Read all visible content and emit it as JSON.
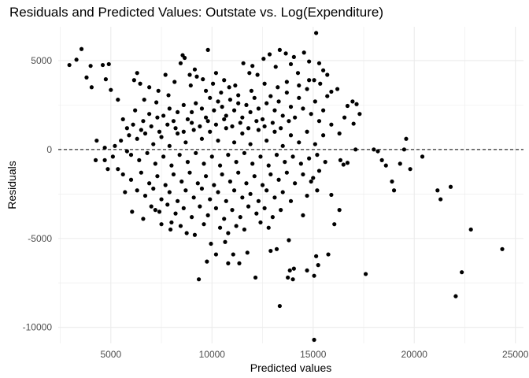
{
  "chart_data": {
    "type": "scatter",
    "title": "Residuals and Predicted Values: Outstate vs. Log(Expenditure)",
    "xlabel": "Predicted values",
    "ylabel": "Residuals",
    "xlim": [
      2400,
      25400
    ],
    "ylim": [
      -10900,
      6900
    ],
    "x_ticks": [
      5000,
      10000,
      15000,
      20000,
      25000
    ],
    "x_tick_labels": [
      "5000",
      "10000",
      "15000",
      "20000",
      "25000"
    ],
    "y_ticks": [
      -10000,
      -5000,
      0,
      5000
    ],
    "y_tick_labels": [
      "-10000",
      "-5000",
      "0",
      "5000"
    ],
    "reference_line": {
      "y": 0,
      "style": "dashed"
    },
    "grid": true,
    "legend": "none",
    "colors": {
      "points": "#000000",
      "grid": "#ebebeb",
      "reference_line": "#000000"
    },
    "points": [
      [
        2950,
        4750
      ],
      [
        3300,
        5050
      ],
      [
        3550,
        5650
      ],
      [
        3800,
        4050
      ],
      [
        4000,
        4700
      ],
      [
        4050,
        3500
      ],
      [
        4600,
        4750
      ],
      [
        4750,
        3950
      ],
      [
        4900,
        4800
      ],
      [
        5000,
        3350
      ],
      [
        5350,
        2800
      ],
      [
        5600,
        1700
      ],
      [
        5800,
        1200
      ],
      [
        6150,
        3900
      ],
      [
        6300,
        4300
      ],
      [
        6450,
        3700
      ],
      [
        6650,
        2800
      ],
      [
        6900,
        3500
      ],
      [
        7250,
        2650
      ],
      [
        7850,
        3050
      ],
      [
        8450,
        4850
      ],
      [
        8550,
        5300
      ],
      [
        8650,
        5150
      ],
      [
        9150,
        4500
      ],
      [
        9550,
        3950
      ],
      [
        9800,
        5600
      ],
      [
        10600,
        3900
      ],
      [
        10850,
        3500
      ],
      [
        11300,
        3050
      ],
      [
        11550,
        4850
      ],
      [
        11850,
        4300
      ],
      [
        12250,
        4200
      ],
      [
        12550,
        5100
      ],
      [
        12850,
        5350
      ],
      [
        13150,
        4650
      ],
      [
        13350,
        5600
      ],
      [
        13650,
        5400
      ],
      [
        13900,
        4800
      ],
      [
        14050,
        5200
      ],
      [
        14250,
        4300
      ],
      [
        14550,
        5450
      ],
      [
        14800,
        4950
      ],
      [
        15050,
        3900
      ],
      [
        15150,
        6550
      ],
      [
        15300,
        4850
      ],
      [
        15500,
        4450
      ],
      [
        15900,
        3250
      ],
      [
        16200,
        3400
      ],
      [
        16700,
        2450
      ],
      [
        16950,
        2700
      ],
      [
        17150,
        2550
      ],
      [
        17300,
        2000
      ],
      [
        17000,
        1450
      ],
      [
        16550,
        1800
      ],
      [
        16300,
        900
      ],
      [
        17100,
        0
      ],
      [
        16350,
        -600
      ],
      [
        16500,
        -850
      ],
      [
        16700,
        -750
      ],
      [
        15900,
        -2550
      ],
      [
        16300,
        -3400
      ],
      [
        16050,
        -4200
      ],
      [
        15750,
        -5900
      ],
      [
        15150,
        -6000
      ],
      [
        15250,
        -6500
      ],
      [
        15050,
        -7100
      ],
      [
        15050,
        -10700
      ],
      [
        14700,
        -6800
      ],
      [
        14050,
        -6700
      ],
      [
        13850,
        -6800
      ],
      [
        13750,
        -7200
      ],
      [
        14000,
        -7300
      ],
      [
        13350,
        -8800
      ],
      [
        13800,
        -5100
      ],
      [
        13200,
        -5600
      ],
      [
        12900,
        -5700
      ],
      [
        12150,
        -7200
      ],
      [
        11750,
        -5800
      ],
      [
        11350,
        -6400
      ],
      [
        11050,
        -5900
      ],
      [
        10800,
        -6400
      ],
      [
        10650,
        -5200
      ],
      [
        10200,
        -5900
      ],
      [
        9950,
        -5300
      ],
      [
        9750,
        -6300
      ],
      [
        9350,
        -7300
      ],
      [
        9150,
        -4800
      ],
      [
        8750,
        -4700
      ],
      [
        8450,
        -4300
      ],
      [
        7950,
        -4500
      ],
      [
        7500,
        -4200
      ],
      [
        7200,
        -3400
      ],
      [
        6600,
        -3900
      ],
      [
        6050,
        -3500
      ],
      [
        5700,
        -2400
      ],
      [
        5350,
        -1100
      ],
      [
        4850,
        -1100
      ],
      [
        4700,
        -600
      ],
      [
        4300,
        500
      ],
      [
        4250,
        -600
      ],
      [
        18000,
        0
      ],
      [
        18200,
        -100
      ],
      [
        18400,
        -600
      ],
      [
        18600,
        -900
      ],
      [
        18900,
        -1800
      ],
      [
        19000,
        -2300
      ],
      [
        19300,
        -800
      ],
      [
        19500,
        0
      ],
      [
        19600,
        600
      ],
      [
        19800,
        -1100
      ],
      [
        20400,
        -400
      ],
      [
        21150,
        -2300
      ],
      [
        21300,
        -2800
      ],
      [
        21800,
        -2100
      ],
      [
        22050,
        -8250
      ],
      [
        22350,
        -6900
      ],
      [
        22800,
        -4500
      ],
      [
        24350,
        -5600
      ],
      [
        17600,
        -7000
      ],
      [
        6200,
        2200
      ],
      [
        6600,
        1600
      ],
      [
        6900,
        2000
      ],
      [
        7300,
        1800
      ],
      [
        7600,
        1900
      ],
      [
        7900,
        2300
      ],
      [
        8100,
        1600
      ],
      [
        8300,
        2100
      ],
      [
        8600,
        2500
      ],
      [
        8800,
        1700
      ],
      [
        9000,
        2100
      ],
      [
        9200,
        2600
      ],
      [
        9500,
        2300
      ],
      [
        9700,
        1800
      ],
      [
        9900,
        2900
      ],
      [
        10100,
        2200
      ],
      [
        10300,
        2700
      ],
      [
        10500,
        2400
      ],
      [
        10700,
        1900
      ],
      [
        10900,
        2800
      ],
      [
        11100,
        2200
      ],
      [
        11300,
        2600
      ],
      [
        11500,
        1800
      ],
      [
        11700,
        2500
      ],
      [
        11900,
        2100
      ],
      [
        12100,
        2900
      ],
      [
        12300,
        2300
      ],
      [
        12500,
        1700
      ],
      [
        12700,
        2600
      ],
      [
        12900,
        3000
      ],
      [
        13100,
        2200
      ],
      [
        13300,
        2700
      ],
      [
        13500,
        1900
      ],
      [
        13700,
        3200
      ],
      [
        13900,
        2400
      ],
      [
        14100,
        1800
      ],
      [
        14300,
        2900
      ],
      [
        14500,
        2300
      ],
      [
        14700,
        3400
      ],
      [
        14900,
        2000
      ],
      [
        15100,
        2700
      ],
      [
        15300,
        1600
      ],
      [
        15500,
        2200
      ],
      [
        15700,
        3000
      ],
      [
        15900,
        1400
      ],
      [
        5900,
        800
      ],
      [
        6300,
        600
      ],
      [
        6700,
        900
      ],
      [
        7100,
        300
      ],
      [
        7500,
        700
      ],
      [
        7900,
        200
      ],
      [
        8300,
        900
      ],
      [
        8700,
        400
      ],
      [
        9100,
        1100
      ],
      [
        9500,
        600
      ],
      [
        9900,
        1000
      ],
      [
        10300,
        500
      ],
      [
        10700,
        1200
      ],
      [
        11100,
        400
      ],
      [
        11500,
        900
      ],
      [
        11900,
        300
      ],
      [
        12300,
        1100
      ],
      [
        12700,
        500
      ],
      [
        13100,
        1000
      ],
      [
        13500,
        200
      ],
      [
        13900,
        800
      ],
      [
        14300,
        400
      ],
      [
        14700,
        1000
      ],
      [
        15100,
        300
      ],
      [
        15500,
        800
      ],
      [
        6100,
        1400
      ],
      [
        6500,
        1100
      ],
      [
        7000,
        1300
      ],
      [
        7400,
        1000
      ],
      [
        7800,
        1400
      ],
      [
        8200,
        1200
      ],
      [
        8600,
        1000
      ],
      [
        9000,
        1500
      ],
      [
        9400,
        1300
      ],
      [
        9800,
        1600
      ],
      [
        10200,
        1400
      ],
      [
        10600,
        1700
      ],
      [
        11000,
        1300
      ],
      [
        11400,
        1500
      ],
      [
        11800,
        1200
      ],
      [
        12200,
        1600
      ],
      [
        12600,
        1300
      ],
      [
        13000,
        1500
      ],
      [
        13400,
        1200
      ],
      [
        13800,
        1600
      ],
      [
        6000,
        -300
      ],
      [
        6400,
        -600
      ],
      [
        6800,
        -200
      ],
      [
        7200,
        -800
      ],
      [
        7600,
        -400
      ],
      [
        8000,
        -900
      ],
      [
        8400,
        -300
      ],
      [
        8800,
        -700
      ],
      [
        9200,
        -200
      ],
      [
        9600,
        -800
      ],
      [
        10000,
        -400
      ],
      [
        10400,
        -900
      ],
      [
        10800,
        -300
      ],
      [
        11200,
        -700
      ],
      [
        11600,
        -200
      ],
      [
        12000,
        -800
      ],
      [
        12400,
        -400
      ],
      [
        12800,
        -900
      ],
      [
        13200,
        -300
      ],
      [
        13600,
        -700
      ],
      [
        14000,
        -400
      ],
      [
        14400,
        -800
      ],
      [
        14800,
        -500
      ],
      [
        15200,
        -300
      ],
      [
        15600,
        -700
      ],
      [
        5600,
        -1400
      ],
      [
        6000,
        -1700
      ],
      [
        6500,
        -1300
      ],
      [
        6900,
        -1900
      ],
      [
        7300,
        -1500
      ],
      [
        7700,
        -2000
      ],
      [
        8100,
        -1400
      ],
      [
        8500,
        -1800
      ],
      [
        8900,
        -1300
      ],
      [
        9300,
        -1900
      ],
      [
        9700,
        -1500
      ],
      [
        10100,
        -2000
      ],
      [
        10500,
        -1400
      ],
      [
        10900,
        -1800
      ],
      [
        11300,
        -1300
      ],
      [
        11700,
        -1900
      ],
      [
        12100,
        -1500
      ],
      [
        12500,
        -2000
      ],
      [
        12900,
        -1400
      ],
      [
        13300,
        -1700
      ],
      [
        13700,
        -1300
      ],
      [
        14100,
        -1900
      ],
      [
        14500,
        -1400
      ],
      [
        14900,
        -1800
      ],
      [
        15300,
        -1200
      ],
      [
        6300,
        -2300
      ],
      [
        6700,
        -2600
      ],
      [
        7100,
        -2200
      ],
      [
        7500,
        -2800
      ],
      [
        7900,
        -2400
      ],
      [
        8300,
        -2900
      ],
      [
        8700,
        -2300
      ],
      [
        9100,
        -2700
      ],
      [
        9500,
        -2200
      ],
      [
        9900,
        -2800
      ],
      [
        10300,
        -2400
      ],
      [
        10700,
        -2900
      ],
      [
        11100,
        -2300
      ],
      [
        11500,
        -2700
      ],
      [
        11900,
        -2500
      ],
      [
        12300,
        -2900
      ],
      [
        12700,
        -2300
      ],
      [
        13100,
        -2700
      ],
      [
        13500,
        -2400
      ],
      [
        13900,
        -2900
      ],
      [
        7000,
        -3200
      ],
      [
        7400,
        -3500
      ],
      [
        7800,
        -3100
      ],
      [
        8200,
        -3600
      ],
      [
        8600,
        -3300
      ],
      [
        9000,
        -3800
      ],
      [
        9400,
        -3200
      ],
      [
        9800,
        -3700
      ],
      [
        10200,
        -3300
      ],
      [
        10600,
        -3900
      ],
      [
        11000,
        -3400
      ],
      [
        11400,
        -3800
      ],
      [
        11800,
        -3200
      ],
      [
        12200,
        -3600
      ],
      [
        12600,
        -3300
      ],
      [
        13000,
        -3800
      ],
      [
        13400,
        -3400
      ],
      [
        8000,
        -4100
      ],
      [
        9600,
        -4200
      ],
      [
        10400,
        -4400
      ],
      [
        10800,
        -4700
      ],
      [
        11200,
        -4300
      ],
      [
        11600,
        -4500
      ],
      [
        12400,
        -4100
      ],
      [
        12800,
        -4400
      ],
      [
        14500,
        -3700
      ],
      [
        14700,
        -2600
      ],
      [
        15000,
        -1600
      ],
      [
        15200,
        -2300
      ],
      [
        5200,
        200
      ],
      [
        5500,
        500
      ],
      [
        5800,
        -100
      ],
      [
        4700,
        100
      ],
      [
        5100,
        -400
      ],
      [
        7700,
        4200
      ],
      [
        7350,
        3300
      ],
      [
        8150,
        3800
      ],
      [
        8950,
        3600
      ],
      [
        9250,
        4100
      ],
      [
        9700,
        3300
      ],
      [
        10050,
        3700
      ],
      [
        10450,
        3200
      ],
      [
        11150,
        3600
      ],
      [
        11950,
        3300
      ],
      [
        12600,
        3700
      ],
      [
        13250,
        3500
      ],
      [
        13700,
        3800
      ],
      [
        14300,
        3600
      ],
      [
        14800,
        3900
      ],
      [
        15350,
        3700
      ],
      [
        15700,
        4200
      ],
      [
        12000,
        4700
      ],
      [
        10200,
        4300
      ],
      [
        8900,
        4200
      ]
    ]
  }
}
